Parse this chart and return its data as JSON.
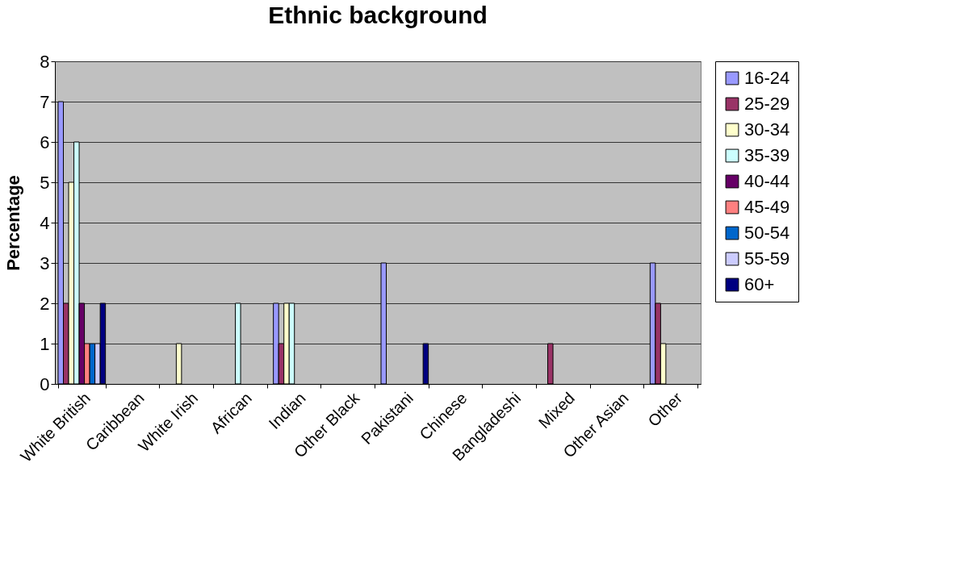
{
  "chart_data": {
    "type": "bar",
    "title": "Ethnic background",
    "ylabel": "Percentage",
    "categories": [
      "White British",
      "Caribbean",
      "White Irish",
      "African",
      "Indian",
      "Other Black",
      "Pakistani",
      "Chinese",
      "Bangladeshi",
      "Mixed",
      "Other Asian",
      "Other"
    ],
    "series": [
      {
        "name": "16-24",
        "color": "#9999ff",
        "values": [
          7,
          null,
          null,
          null,
          2,
          null,
          3,
          null,
          null,
          null,
          null,
          3
        ]
      },
      {
        "name": "25-29",
        "color": "#993366",
        "values": [
          2,
          null,
          null,
          null,
          1,
          null,
          null,
          null,
          null,
          1,
          null,
          2
        ]
      },
      {
        "name": "30-34",
        "color": "#ffffcc",
        "values": [
          5,
          null,
          1,
          null,
          2,
          null,
          null,
          null,
          null,
          null,
          null,
          1
        ]
      },
      {
        "name": "35-39",
        "color": "#ccffff",
        "values": [
          6,
          null,
          null,
          2,
          2,
          null,
          null,
          null,
          null,
          null,
          null,
          null
        ]
      },
      {
        "name": "40-44",
        "color": "#660066",
        "values": [
          2,
          null,
          null,
          null,
          null,
          null,
          null,
          null,
          null,
          null,
          null,
          null
        ]
      },
      {
        "name": "45-49",
        "color": "#ff8080",
        "values": [
          1,
          null,
          null,
          null,
          null,
          null,
          null,
          null,
          null,
          null,
          null,
          null
        ]
      },
      {
        "name": "50-54",
        "color": "#0066cc",
        "values": [
          1,
          null,
          null,
          null,
          null,
          null,
          null,
          null,
          null,
          null,
          null,
          null
        ]
      },
      {
        "name": "55-59",
        "color": "#ccccff",
        "values": [
          1,
          null,
          null,
          null,
          null,
          null,
          null,
          null,
          null,
          null,
          null,
          null
        ]
      },
      {
        "name": "60+",
        "color": "#000080",
        "values": [
          2,
          null,
          null,
          null,
          null,
          null,
          1,
          null,
          null,
          null,
          null,
          null
        ]
      }
    ],
    "ylim": [
      0,
      8
    ],
    "yticks": [
      0,
      1,
      2,
      3,
      4,
      5,
      6,
      7,
      8
    ],
    "grid": "y",
    "legend": "right"
  }
}
